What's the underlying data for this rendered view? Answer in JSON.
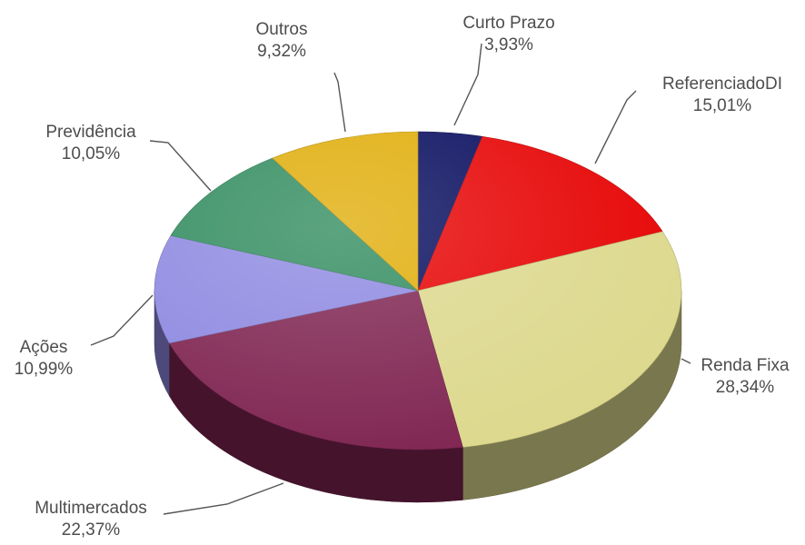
{
  "chart_data": {
    "type": "pie",
    "style": "3d",
    "title": "",
    "slices": [
      {
        "name": "Curto Prazo",
        "value": 3.93,
        "value_label": "3,93%",
        "color": "#050a5c"
      },
      {
        "name": "ReferenciadoDI",
        "value": 15.01,
        "value_label": "15,01%",
        "color": "#e60000"
      },
      {
        "name": "Renda Fixa",
        "value": 28.34,
        "value_label": "28,34%",
        "color": "#dcd88c"
      },
      {
        "name": "Multimercados",
        "value": 22.37,
        "value_label": "22,37%",
        "color": "#7e2350"
      },
      {
        "name": "Ações",
        "value": 10.99,
        "value_label": "10,99%",
        "color": "#8c87e0"
      },
      {
        "name": "Previdência",
        "value": 10.05,
        "value_label": "10,05%",
        "color": "#2e8a5c"
      },
      {
        "name": "Outros",
        "value": 9.32,
        "value_label": "9,32%",
        "color": "#e0ac06"
      }
    ]
  }
}
